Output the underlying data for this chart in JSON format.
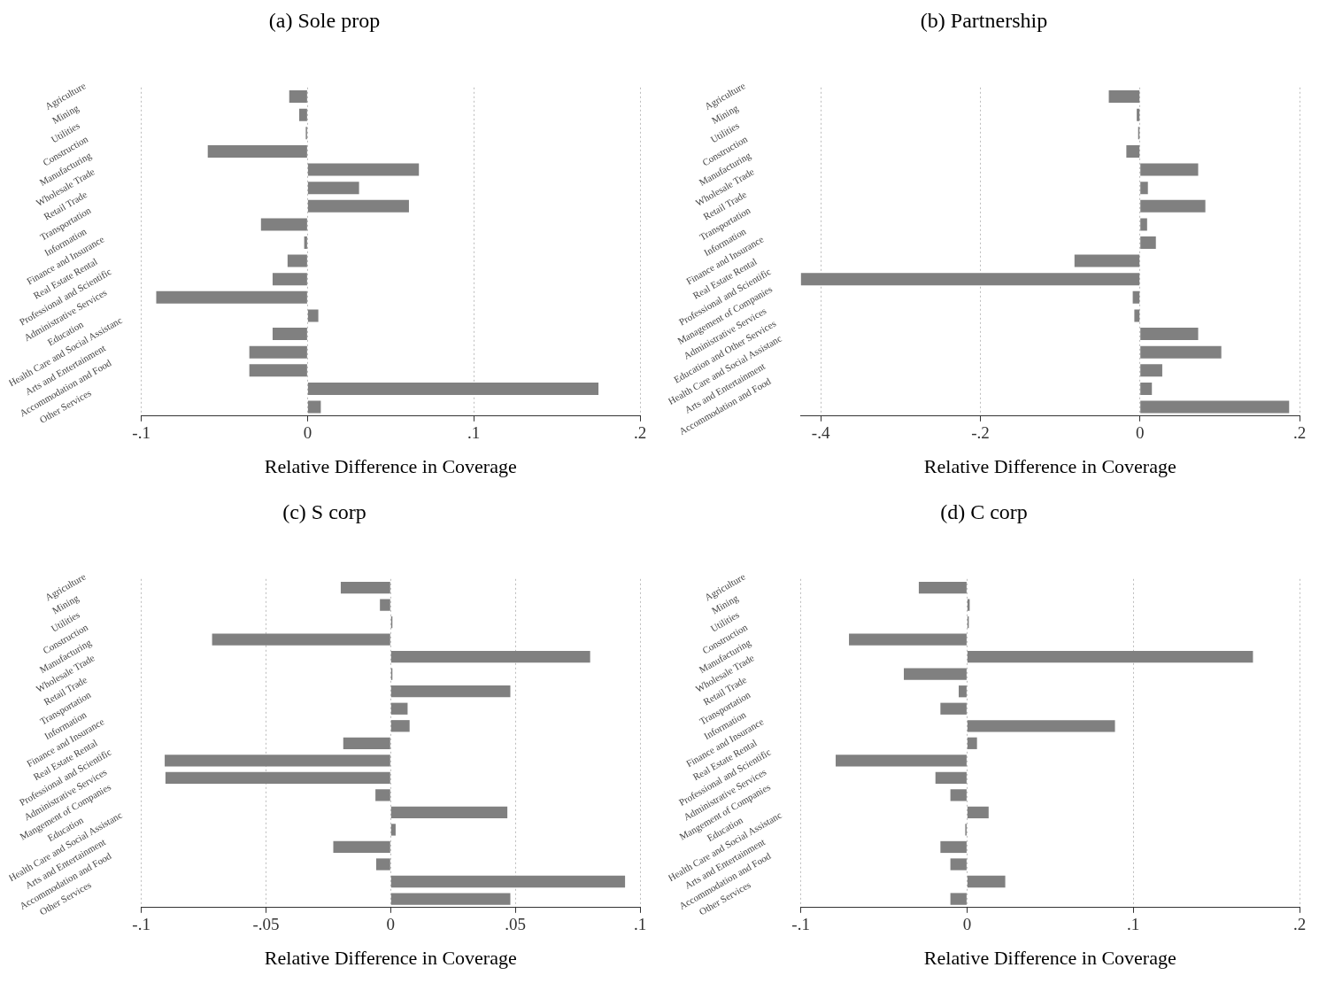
{
  "chart_data": [
    {
      "type": "bar",
      "orientation": "horizontal",
      "title": "(a) Sole prop",
      "xlabel": "Relative Difference in Coverage",
      "color": "#808080",
      "grid": "x",
      "categories": [
        "Agriculture",
        "Mining",
        "Utilities",
        "Construction",
        "Manufacturing",
        "Wholesale Trade",
        "Retail Trade",
        "Transportation",
        "Information",
        "Finance and Insurance",
        "Real Estate Rental",
        "Professional and Scientific",
        "Administrative Services",
        "Education",
        "Health Care and Social Assistanc",
        "Arts and Entertainment",
        "Accommodation and Food",
        "Other Services"
      ],
      "values": [
        -0.011,
        -0.005,
        -0.001,
        -0.06,
        0.067,
        0.031,
        0.061,
        -0.028,
        -0.002,
        -0.012,
        -0.021,
        -0.091,
        0.0065,
        -0.021,
        -0.035,
        -0.035,
        0.175,
        0.008
      ],
      "xlim": [
        -0.1,
        0.2
      ],
      "xticks": [
        {
          "value": -0.1,
          "label": "-.1"
        },
        {
          "value": 0,
          "label": "0"
        },
        {
          "value": 0.1,
          "label": ".1"
        },
        {
          "value": 0.2,
          "label": ".2"
        }
      ]
    },
    {
      "type": "bar",
      "orientation": "horizontal",
      "title": "(b) Partnership",
      "xlabel": "Relative Difference in Coverage",
      "color": "#808080",
      "grid": "x",
      "categories": [
        "Agriculture",
        "Mining",
        "Utilities",
        "Construction",
        "Manufacturing",
        "Wholesale Trade",
        "Retail Trade",
        "Transportation",
        "Information",
        "Finance and Insurance",
        "Real Estate Rental",
        "Professional and Scientific",
        "Management of Companies",
        "Administrative Services",
        "Education and Other Services",
        "Health Care and Social Assistanc",
        "Arts and Entertainment",
        "Accommodation and Food"
      ],
      "values": [
        -0.039,
        -0.004,
        -0.001,
        -0.017,
        0.073,
        0.01,
        0.082,
        0.009,
        0.02,
        -0.082,
        -0.425,
        -0.009,
        -0.007,
        0.073,
        0.102,
        0.028,
        0.015,
        0.187
      ],
      "xlim": [
        -0.425,
        0.2
      ],
      "xticks": [
        {
          "value": -0.4,
          "label": "-.4"
        },
        {
          "value": -0.2,
          "label": "-.2"
        },
        {
          "value": 0,
          "label": "0"
        },
        {
          "value": 0.2,
          "label": ".2"
        }
      ]
    },
    {
      "type": "bar",
      "orientation": "horizontal",
      "title": "(c) S corp",
      "xlabel": "Relative Difference in Coverage",
      "color": "#808080",
      "grid": "x",
      "categories": [
        "Agriculture",
        "Mining",
        "Utilities",
        "Construction",
        "Manufacturing",
        "Wholesale Trade",
        "Retail Trade",
        "Transportation",
        "Information",
        "Finance and Insurance",
        "Real Estate Rental",
        "Professional and Scientific",
        "Administrative Services",
        "Mangement of Companies",
        "Education",
        "Health Care and Social Assistanc",
        "Arts and Entertainment",
        "Accommodation and Food",
        "Other Services"
      ],
      "values": [
        -0.02,
        -0.0043,
        0.0004,
        -0.0716,
        0.08,
        0.0002,
        0.048,
        0.0068,
        0.0076,
        -0.019,
        -0.0906,
        -0.0903,
        -0.0061,
        0.0468,
        0.002,
        -0.023,
        -0.0058,
        0.094,
        0.048
      ],
      "xlim": [
        -0.1,
        0.1
      ],
      "xticks": [
        {
          "value": -0.1,
          "label": "-.1"
        },
        {
          "value": -0.05,
          "label": "-.05"
        },
        {
          "value": 0,
          "label": "0"
        },
        {
          "value": 0.05,
          "label": ".05"
        },
        {
          "value": 0.1,
          "label": ".1"
        }
      ]
    },
    {
      "type": "bar",
      "orientation": "horizontal",
      "title": "(d) C corp",
      "xlabel": "Relative Difference in Coverage",
      "color": "#808080",
      "grid": "x",
      "categories": [
        "Agriculture",
        "Mining",
        "Utilities",
        "Construction",
        "Manufacturing",
        "Wholesale Trade",
        "Retail Trade",
        "Transportation",
        "Information",
        "Finance and Insurance",
        "Real Estate Rental",
        "Professional and Scientific",
        "Administrative Services",
        "Mangement of Companies",
        "Education",
        "Health Care and Social Assistanc",
        "Arts and Entertainment",
        "Accommodation and Food",
        "Other Services"
      ],
      "values": [
        -0.029,
        0.0016,
        0.0003,
        -0.071,
        0.172,
        -0.038,
        -0.005,
        -0.016,
        0.089,
        0.006,
        -0.079,
        -0.019,
        -0.01,
        0.013,
        -0.001,
        -0.016,
        -0.01,
        0.023,
        -0.01
      ],
      "xlim": [
        -0.1,
        0.2
      ],
      "xticks": [
        {
          "value": -0.1,
          "label": "-.1"
        },
        {
          "value": 0,
          "label": "0"
        },
        {
          "value": 0.1,
          "label": ".1"
        },
        {
          "value": 0.2,
          "label": ".2"
        }
      ]
    }
  ]
}
